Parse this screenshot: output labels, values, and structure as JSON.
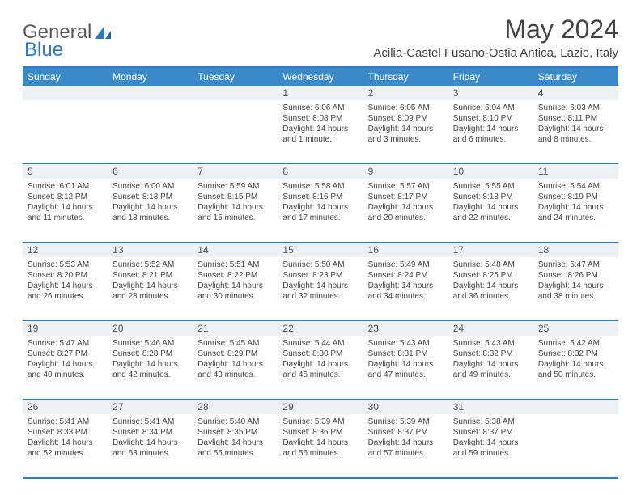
{
  "logo": {
    "text1": "General",
    "text2": "Blue"
  },
  "title": "May 2024",
  "location": "Acilia-Castel Fusano-Ostia Antica, Lazio, Italy",
  "colors": {
    "header_bg": "#3a8ac9",
    "border": "#2f7bbf",
    "daynum_bg": "#eef1f3"
  },
  "day_names": [
    "Sunday",
    "Monday",
    "Tuesday",
    "Wednesday",
    "Thursday",
    "Friday",
    "Saturday"
  ],
  "weeks": [
    [
      null,
      null,
      null,
      {
        "n": "1",
        "sr": "6:06 AM",
        "ss": "8:08 PM",
        "dl": "14 hours and 1 minute."
      },
      {
        "n": "2",
        "sr": "6:05 AM",
        "ss": "8:09 PM",
        "dl": "14 hours and 3 minutes."
      },
      {
        "n": "3",
        "sr": "6:04 AM",
        "ss": "8:10 PM",
        "dl": "14 hours and 6 minutes."
      },
      {
        "n": "4",
        "sr": "6:03 AM",
        "ss": "8:11 PM",
        "dl": "14 hours and 8 minutes."
      }
    ],
    [
      {
        "n": "5",
        "sr": "6:01 AM",
        "ss": "8:12 PM",
        "dl": "14 hours and 11 minutes."
      },
      {
        "n": "6",
        "sr": "6:00 AM",
        "ss": "8:13 PM",
        "dl": "14 hours and 13 minutes."
      },
      {
        "n": "7",
        "sr": "5:59 AM",
        "ss": "8:15 PM",
        "dl": "14 hours and 15 minutes."
      },
      {
        "n": "8",
        "sr": "5:58 AM",
        "ss": "8:16 PM",
        "dl": "14 hours and 17 minutes."
      },
      {
        "n": "9",
        "sr": "5:57 AM",
        "ss": "8:17 PM",
        "dl": "14 hours and 20 minutes."
      },
      {
        "n": "10",
        "sr": "5:55 AM",
        "ss": "8:18 PM",
        "dl": "14 hours and 22 minutes."
      },
      {
        "n": "11",
        "sr": "5:54 AM",
        "ss": "8:19 PM",
        "dl": "14 hours and 24 minutes."
      }
    ],
    [
      {
        "n": "12",
        "sr": "5:53 AM",
        "ss": "8:20 PM",
        "dl": "14 hours and 26 minutes."
      },
      {
        "n": "13",
        "sr": "5:52 AM",
        "ss": "8:21 PM",
        "dl": "14 hours and 28 minutes."
      },
      {
        "n": "14",
        "sr": "5:51 AM",
        "ss": "8:22 PM",
        "dl": "14 hours and 30 minutes."
      },
      {
        "n": "15",
        "sr": "5:50 AM",
        "ss": "8:23 PM",
        "dl": "14 hours and 32 minutes."
      },
      {
        "n": "16",
        "sr": "5:49 AM",
        "ss": "8:24 PM",
        "dl": "14 hours and 34 minutes."
      },
      {
        "n": "17",
        "sr": "5:48 AM",
        "ss": "8:25 PM",
        "dl": "14 hours and 36 minutes."
      },
      {
        "n": "18",
        "sr": "5:47 AM",
        "ss": "8:26 PM",
        "dl": "14 hours and 38 minutes."
      }
    ],
    [
      {
        "n": "19",
        "sr": "5:47 AM",
        "ss": "8:27 PM",
        "dl": "14 hours and 40 minutes."
      },
      {
        "n": "20",
        "sr": "5:46 AM",
        "ss": "8:28 PM",
        "dl": "14 hours and 42 minutes."
      },
      {
        "n": "21",
        "sr": "5:45 AM",
        "ss": "8:29 PM",
        "dl": "14 hours and 43 minutes."
      },
      {
        "n": "22",
        "sr": "5:44 AM",
        "ss": "8:30 PM",
        "dl": "14 hours and 45 minutes."
      },
      {
        "n": "23",
        "sr": "5:43 AM",
        "ss": "8:31 PM",
        "dl": "14 hours and 47 minutes."
      },
      {
        "n": "24",
        "sr": "5:43 AM",
        "ss": "8:32 PM",
        "dl": "14 hours and 49 minutes."
      },
      {
        "n": "25",
        "sr": "5:42 AM",
        "ss": "8:32 PM",
        "dl": "14 hours and 50 minutes."
      }
    ],
    [
      {
        "n": "26",
        "sr": "5:41 AM",
        "ss": "8:33 PM",
        "dl": "14 hours and 52 minutes."
      },
      {
        "n": "27",
        "sr": "5:41 AM",
        "ss": "8:34 PM",
        "dl": "14 hours and 53 minutes."
      },
      {
        "n": "28",
        "sr": "5:40 AM",
        "ss": "8:35 PM",
        "dl": "14 hours and 55 minutes."
      },
      {
        "n": "29",
        "sr": "5:39 AM",
        "ss": "8:36 PM",
        "dl": "14 hours and 56 minutes."
      },
      {
        "n": "30",
        "sr": "5:39 AM",
        "ss": "8:37 PM",
        "dl": "14 hours and 57 minutes."
      },
      {
        "n": "31",
        "sr": "5:38 AM",
        "ss": "8:37 PM",
        "dl": "14 hours and 59 minutes."
      },
      null
    ]
  ],
  "labels": {
    "sunrise": "Sunrise:",
    "sunset": "Sunset:",
    "daylight": "Daylight:"
  }
}
